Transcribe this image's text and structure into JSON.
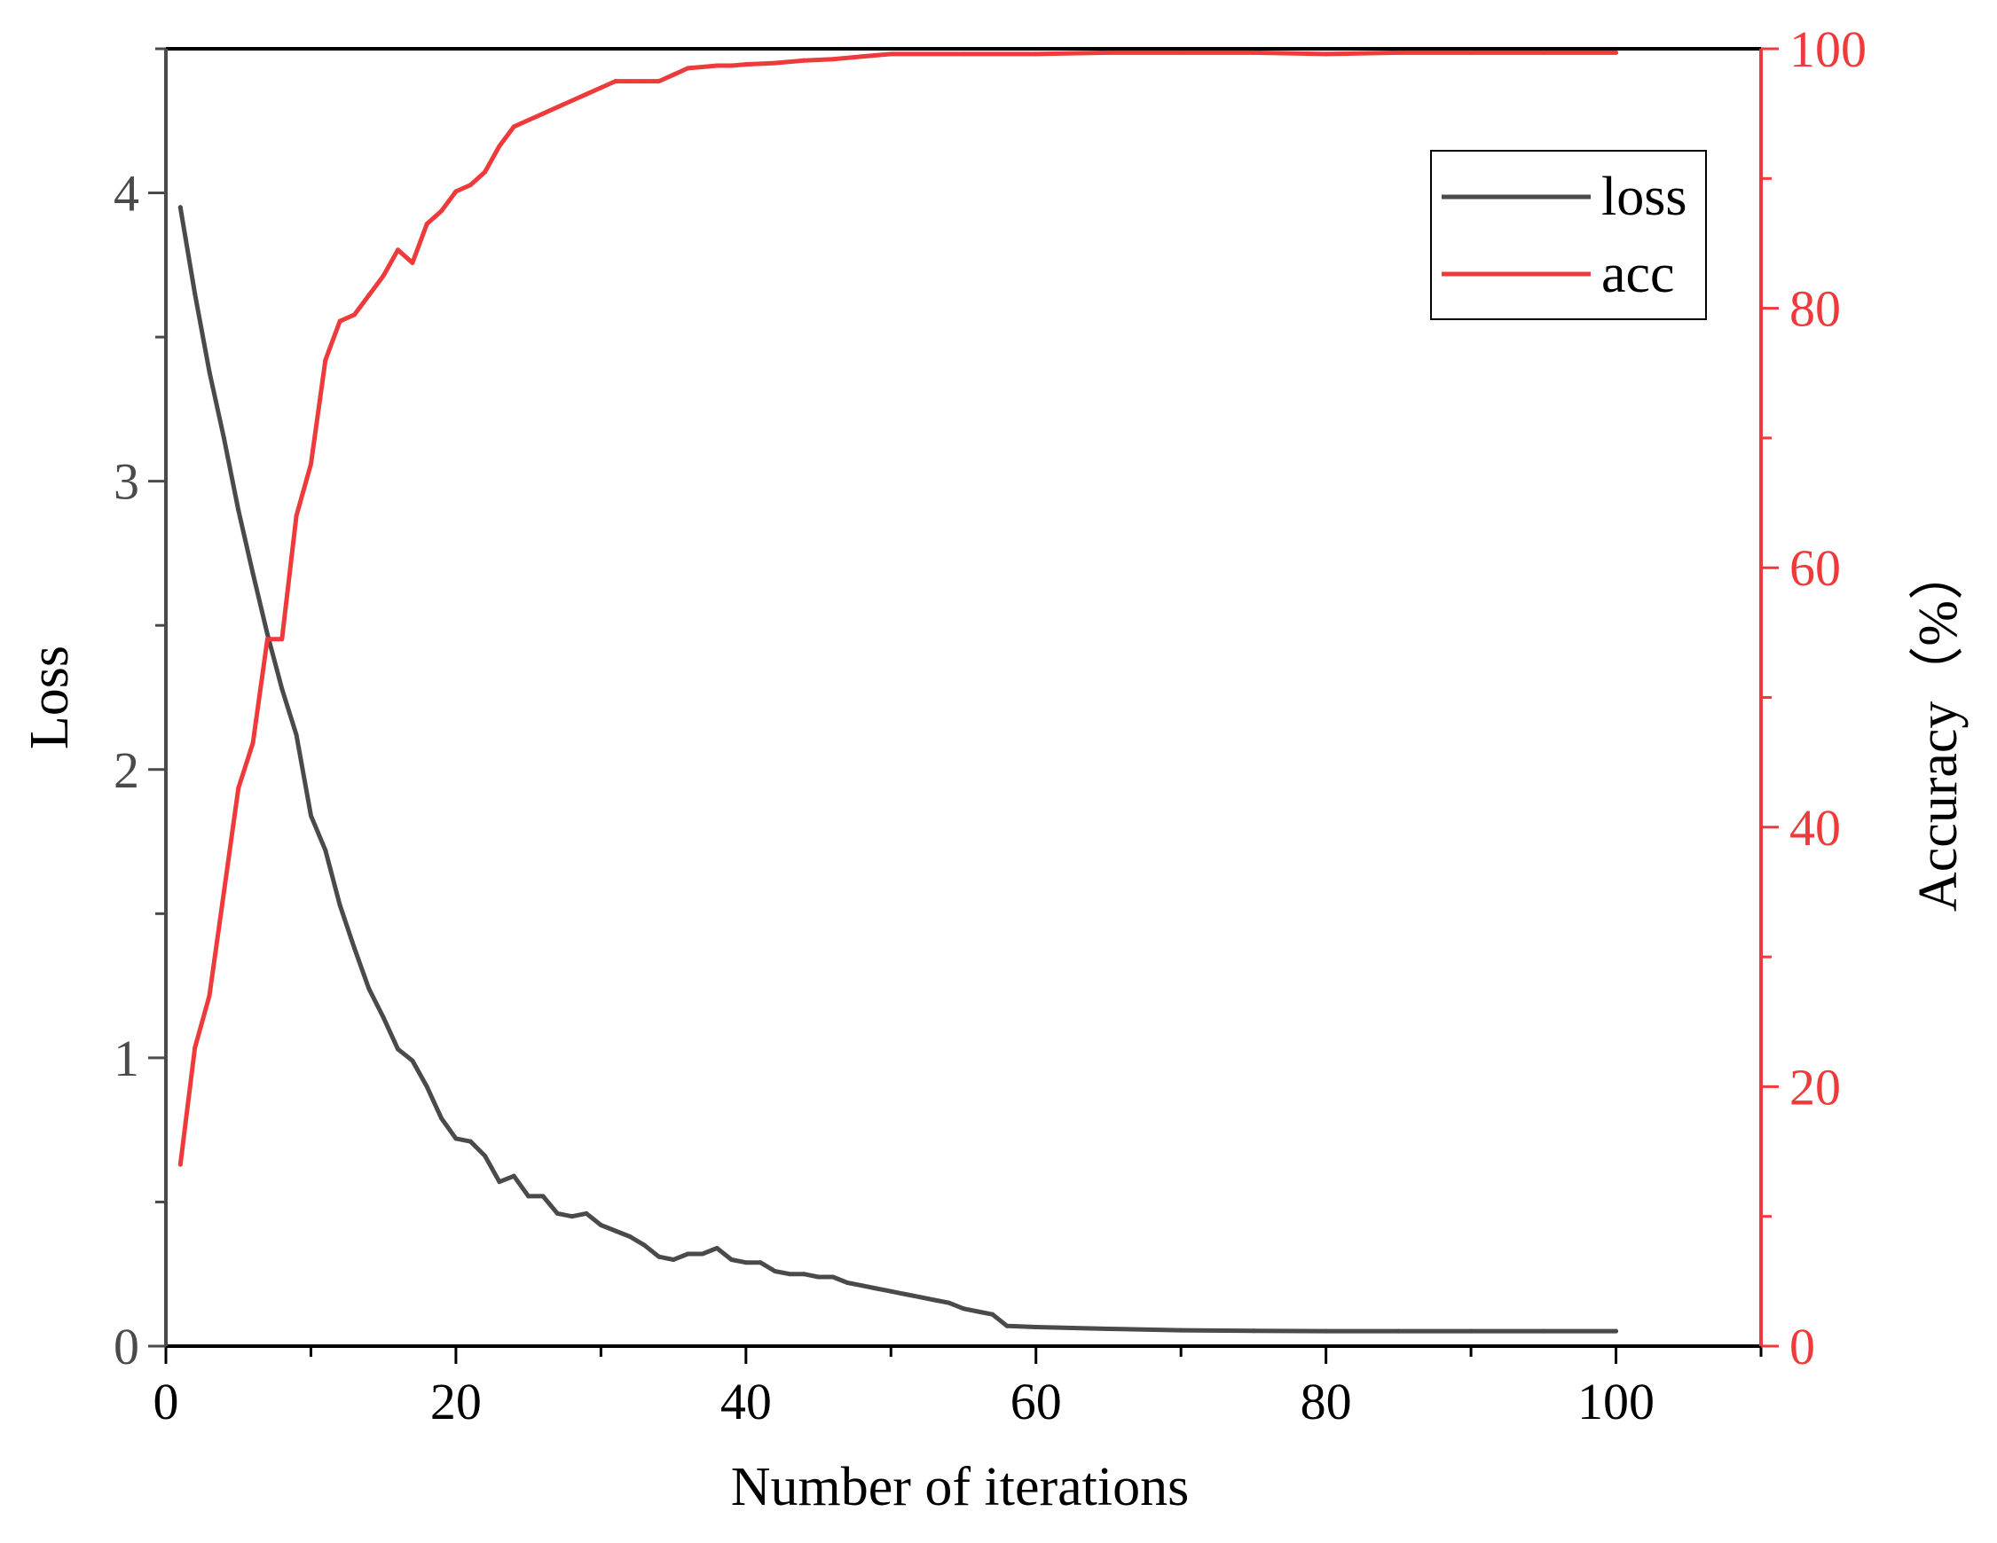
{
  "chart_data": {
    "type": "line",
    "title": "",
    "xlabel": "Number of iterations",
    "ylabel_left": "Loss",
    "ylabel_right": "Accuracy（%）",
    "xlim": [
      0,
      110
    ],
    "ylim_left": [
      0,
      4.5
    ],
    "ylim_right": [
      0,
      100
    ],
    "x_ticks": [
      0,
      20,
      40,
      60,
      80,
      100
    ],
    "x_tick_labels": [
      "0",
      "20",
      "40",
      "60",
      "80",
      "100"
    ],
    "y_left_ticks": [
      0,
      1,
      2,
      3,
      4
    ],
    "y_left_tick_labels": [
      "0",
      "1",
      "2",
      "3",
      "4"
    ],
    "y_right_ticks": [
      0,
      20,
      40,
      60,
      80,
      100
    ],
    "y_right_tick_labels": [
      "0",
      "20",
      "40",
      "60",
      "80",
      "100"
    ],
    "grid": false,
    "legend_position": "top-right",
    "colors": {
      "loss": "#4a4a4a",
      "acc": "#ee3a3a",
      "axis_left": "#4a4a4a",
      "axis_right": "#ee3a3a",
      "frame": "#000000"
    },
    "series": [
      {
        "name": "loss",
        "axis": "left",
        "x": [
          1,
          2,
          3,
          4,
          5,
          6,
          7,
          8,
          9,
          10,
          11,
          12,
          13,
          14,
          15,
          16,
          17,
          18,
          19,
          20,
          21,
          22,
          23,
          24,
          25,
          26,
          27,
          28,
          29,
          30,
          31,
          32,
          33,
          34,
          35,
          36,
          37,
          38,
          39,
          40,
          41,
          42,
          43,
          44,
          45,
          46,
          47,
          48,
          49,
          50,
          51,
          52,
          53,
          54,
          55,
          56,
          57,
          58,
          60,
          65,
          70,
          75,
          80,
          85,
          90,
          95,
          100
        ],
        "values": [
          3.95,
          3.65,
          3.38,
          3.15,
          2.9,
          2.68,
          2.47,
          2.28,
          2.12,
          1.84,
          1.72,
          1.53,
          1.38,
          1.24,
          1.14,
          1.03,
          0.99,
          0.9,
          0.79,
          0.72,
          0.71,
          0.66,
          0.57,
          0.59,
          0.52,
          0.52,
          0.46,
          0.45,
          0.46,
          0.42,
          0.4,
          0.38,
          0.35,
          0.31,
          0.3,
          0.32,
          0.32,
          0.34,
          0.3,
          0.29,
          0.29,
          0.26,
          0.25,
          0.25,
          0.24,
          0.24,
          0.22,
          0.21,
          0.2,
          0.19,
          0.18,
          0.17,
          0.16,
          0.15,
          0.13,
          0.12,
          0.11,
          0.07,
          0.066,
          0.06,
          0.055,
          0.053,
          0.052,
          0.052,
          0.052,
          0.052,
          0.052
        ]
      },
      {
        "name": "acc",
        "axis": "right",
        "x": [
          1,
          2,
          3,
          4,
          5,
          6,
          7,
          8,
          9,
          10,
          11,
          12,
          13,
          14,
          15,
          16,
          17,
          18,
          19,
          20,
          21,
          22,
          23,
          24,
          25,
          26,
          27,
          28,
          29,
          30,
          31,
          32,
          33,
          34,
          35,
          36,
          37,
          38,
          39,
          40,
          42,
          44,
          46,
          48,
          50,
          55,
          60,
          65,
          70,
          75,
          80,
          85,
          90,
          95,
          100
        ],
        "values": [
          14,
          23,
          27,
          35,
          43,
          46.5,
          54.5,
          54.5,
          64,
          68,
          76,
          79,
          79.5,
          81,
          82.5,
          84.5,
          83.5,
          86.5,
          87.5,
          89,
          89.5,
          90.5,
          92.5,
          94,
          94.5,
          95,
          95.5,
          96,
          96.5,
          97,
          97.5,
          97.5,
          97.5,
          97.5,
          98,
          98.5,
          98.6,
          98.7,
          98.7,
          98.8,
          98.9,
          99.1,
          99.2,
          99.4,
          99.6,
          99.6,
          99.6,
          99.7,
          99.7,
          99.7,
          99.6,
          99.7,
          99.7,
          99.7,
          99.7
        ]
      }
    ]
  }
}
